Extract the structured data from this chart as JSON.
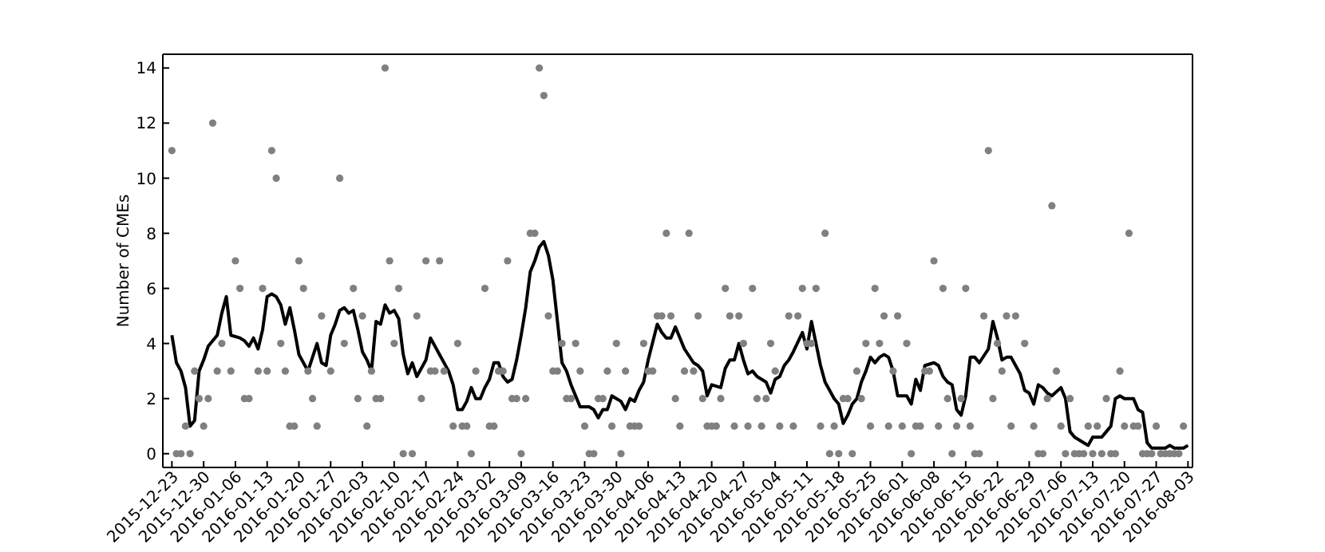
{
  "chart_data": {
    "type": "line",
    "ylabel": "Number of CMEs",
    "xlim": [
      "2015-12-21",
      "2016-08-04"
    ],
    "ylim": [
      -0.5,
      14.5
    ],
    "yticks": [
      0,
      2,
      4,
      6,
      8,
      10,
      12,
      14
    ],
    "xticks": [
      "2015-12-23",
      "2015-12-30",
      "2016-01-06",
      "2016-01-13",
      "2016-01-20",
      "2016-01-27",
      "2016-02-03",
      "2016-02-10",
      "2016-02-17",
      "2016-02-24",
      "2016-03-02",
      "2016-03-09",
      "2016-03-16",
      "2016-03-23",
      "2016-03-30",
      "2016-04-06",
      "2016-04-13",
      "2016-04-20",
      "2016-04-27",
      "2016-05-04",
      "2016-05-11",
      "2016-05-18",
      "2016-05-25",
      "2016-06-01",
      "2016-06-08",
      "2016-06-15",
      "2016-06-22",
      "2016-06-29",
      "2016-07-06",
      "2016-07-13",
      "2016-07-20",
      "2016-07-27",
      "2016-08-03"
    ],
    "series": [
      {
        "type": "scatter",
        "color": "#808080",
        "marker": "circle",
        "x": [
          "2015-12-23",
          "2015-12-24",
          "2015-12-25",
          "2015-12-26",
          "2015-12-27",
          "2015-12-28",
          "2015-12-29",
          "2015-12-30",
          "2015-12-31",
          "2016-01-01",
          "2016-01-02",
          "2016-01-03",
          "2016-01-05",
          "2016-01-06",
          "2016-01-07",
          "2016-01-08",
          "2016-01-09",
          "2016-01-11",
          "2016-01-12",
          "2016-01-13",
          "2016-01-14",
          "2016-01-15",
          "2016-01-16",
          "2016-01-17",
          "2016-01-18",
          "2016-01-19",
          "2016-01-20",
          "2016-01-21",
          "2016-01-22",
          "2016-01-23",
          "2016-01-24",
          "2016-01-25",
          "2016-01-27",
          "2016-01-29",
          "2016-01-30",
          "2016-02-01",
          "2016-02-02",
          "2016-02-03",
          "2016-02-04",
          "2016-02-05",
          "2016-02-06",
          "2016-02-07",
          "2016-02-08",
          "2016-02-09",
          "2016-02-10",
          "2016-02-11",
          "2016-02-12",
          "2016-02-14",
          "2016-02-15",
          "2016-02-16",
          "2016-02-17",
          "2016-02-18",
          "2016-02-19",
          "2016-02-20",
          "2016-02-21",
          "2016-02-23",
          "2016-02-24",
          "2016-02-25",
          "2016-02-26",
          "2016-02-27",
          "2016-02-28",
          "2016-03-01",
          "2016-03-02",
          "2016-03-03",
          "2016-03-04",
          "2016-03-05",
          "2016-03-06",
          "2016-03-07",
          "2016-03-08",
          "2016-03-09",
          "2016-03-10",
          "2016-03-11",
          "2016-03-12",
          "2016-03-13",
          "2016-03-14",
          "2016-03-15",
          "2016-03-16",
          "2016-03-17",
          "2016-03-18",
          "2016-03-19",
          "2016-03-20",
          "2016-03-21",
          "2016-03-22",
          "2016-03-23",
          "2016-03-24",
          "2016-03-25",
          "2016-03-26",
          "2016-03-27",
          "2016-03-28",
          "2016-03-29",
          "2016-03-30",
          "2016-03-31",
          "2016-04-01",
          "2016-04-02",
          "2016-04-03",
          "2016-04-04",
          "2016-04-05",
          "2016-04-06",
          "2016-04-07",
          "2016-04-08",
          "2016-04-09",
          "2016-04-10",
          "2016-04-11",
          "2016-04-12",
          "2016-04-13",
          "2016-04-14",
          "2016-04-15",
          "2016-04-16",
          "2016-04-17",
          "2016-04-18",
          "2016-04-19",
          "2016-04-20",
          "2016-04-21",
          "2016-04-22",
          "2016-04-23",
          "2016-04-24",
          "2016-04-25",
          "2016-04-26",
          "2016-04-27",
          "2016-04-28",
          "2016-04-29",
          "2016-04-30",
          "2016-05-01",
          "2016-05-02",
          "2016-05-03",
          "2016-05-04",
          "2016-05-05",
          "2016-05-07",
          "2016-05-08",
          "2016-05-09",
          "2016-05-10",
          "2016-05-11",
          "2016-05-12",
          "2016-05-13",
          "2016-05-14",
          "2016-05-15",
          "2016-05-16",
          "2016-05-17",
          "2016-05-18",
          "2016-05-19",
          "2016-05-20",
          "2016-05-21",
          "2016-05-22",
          "2016-05-23",
          "2016-05-24",
          "2016-05-25",
          "2016-05-26",
          "2016-05-27",
          "2016-05-28",
          "2016-05-29",
          "2016-05-30",
          "2016-05-31",
          "2016-06-01",
          "2016-06-02",
          "2016-06-03",
          "2016-06-04",
          "2016-06-05",
          "2016-06-06",
          "2016-06-07",
          "2016-06-08",
          "2016-06-09",
          "2016-06-10",
          "2016-06-11",
          "2016-06-12",
          "2016-06-13",
          "2016-06-14",
          "2016-06-15",
          "2016-06-16",
          "2016-06-17",
          "2016-06-18",
          "2016-06-19",
          "2016-06-20",
          "2016-06-21",
          "2016-06-22",
          "2016-06-23",
          "2016-06-24",
          "2016-06-25",
          "2016-06-26",
          "2016-06-28",
          "2016-06-30",
          "2016-07-01",
          "2016-07-02",
          "2016-07-03",
          "2016-07-04",
          "2016-07-05",
          "2016-07-06",
          "2016-07-07",
          "2016-07-08",
          "2016-07-09",
          "2016-07-10",
          "2016-07-11",
          "2016-07-12",
          "2016-07-13",
          "2016-07-14",
          "2016-07-15",
          "2016-07-16",
          "2016-07-17",
          "2016-07-18",
          "2016-07-19",
          "2016-07-20",
          "2016-07-21",
          "2016-07-22",
          "2016-07-23",
          "2016-07-24",
          "2016-07-25",
          "2016-07-26",
          "2016-07-27",
          "2016-07-28",
          "2016-07-29",
          "2016-07-30",
          "2016-07-31",
          "2016-08-01",
          "2016-08-02"
        ],
        "values": [
          11,
          0,
          0,
          1,
          0,
          3,
          2,
          1,
          2,
          12,
          3,
          4,
          3,
          7,
          6,
          2,
          2,
          3,
          6,
          3,
          11,
          10,
          4,
          3,
          1,
          1,
          7,
          6,
          3,
          2,
          1,
          5,
          3,
          10,
          4,
          6,
          2,
          5,
          1,
          3,
          2,
          2,
          14,
          7,
          4,
          6,
          0,
          0,
          5,
          2,
          7,
          3,
          3,
          7,
          3,
          1,
          4,
          1,
          1,
          0,
          3,
          6,
          1,
          1,
          3,
          3,
          7,
          2,
          2,
          0,
          2,
          8,
          8,
          14,
          13,
          5,
          3,
          3,
          4,
          2,
          2,
          4,
          3,
          1,
          0,
          0,
          2,
          2,
          3,
          1,
          4,
          0,
          3,
          1,
          1,
          1,
          4,
          3,
          3,
          5,
          5,
          8,
          5,
          2,
          1,
          3,
          8,
          3,
          5,
          2,
          1,
          1,
          1,
          2,
          6,
          5,
          1,
          5,
          4,
          1,
          6,
          2,
          1,
          2,
          4,
          3,
          1,
          5,
          1,
          5,
          6,
          4,
          4,
          6,
          1,
          8,
          0,
          1,
          0,
          2,
          2,
          0,
          3,
          2,
          4,
          1,
          6,
          4,
          5,
          1,
          3,
          5,
          1,
          4,
          0,
          1,
          1,
          3,
          3,
          7,
          1,
          6,
          2,
          0,
          1,
          2,
          6,
          1,
          0,
          0,
          5,
          11,
          2,
          4,
          3,
          5,
          1,
          5,
          4,
          1,
          0,
          0,
          2,
          9,
          3,
          1,
          0,
          2,
          0,
          0,
          0,
          1,
          0,
          1,
          0,
          2,
          0,
          0,
          3,
          1,
          8,
          1,
          1,
          0,
          0,
          0,
          1,
          0,
          0,
          0,
          0,
          0,
          1
        ]
      },
      {
        "color": "#000000",
        "marker": "none",
        "line_style": "solid",
        "x": [
          "2015-12-23",
          "2015-12-24",
          "2015-12-25",
          "2015-12-26",
          "2015-12-27",
          "2015-12-28",
          "2015-12-29",
          "2015-12-30",
          "2015-12-31",
          "2016-01-02",
          "2016-01-03",
          "2016-01-04",
          "2016-01-05",
          "2016-01-07",
          "2016-01-08",
          "2016-01-09",
          "2016-01-10",
          "2016-01-11",
          "2016-01-12",
          "2016-01-13",
          "2016-01-14",
          "2016-01-15",
          "2016-01-16",
          "2016-01-17",
          "2016-01-18",
          "2016-01-19",
          "2016-01-20",
          "2016-01-21",
          "2016-01-22",
          "2016-01-23",
          "2016-01-24",
          "2016-01-25",
          "2016-01-26",
          "2016-01-27",
          "2016-01-28",
          "2016-01-29",
          "2016-01-30",
          "2016-01-31",
          "2016-02-01",
          "2016-02-02",
          "2016-02-03",
          "2016-02-04",
          "2016-02-05",
          "2016-02-06",
          "2016-02-07",
          "2016-02-08",
          "2016-02-09",
          "2016-02-10",
          "2016-02-11",
          "2016-02-12",
          "2016-02-13",
          "2016-02-14",
          "2016-02-15",
          "2016-02-17",
          "2016-02-18",
          "2016-02-19",
          "2016-02-20",
          "2016-02-22",
          "2016-02-23",
          "2016-02-24",
          "2016-02-25",
          "2016-02-26",
          "2016-02-27",
          "2016-02-28",
          "2016-02-29",
          "2016-03-01",
          "2016-03-02",
          "2016-03-03",
          "2016-03-04",
          "2016-03-05",
          "2016-03-06",
          "2016-03-07",
          "2016-03-08",
          "2016-03-09",
          "2016-03-10",
          "2016-03-11",
          "2016-03-12",
          "2016-03-13",
          "2016-03-14",
          "2016-03-15",
          "2016-03-16",
          "2016-03-17",
          "2016-03-18",
          "2016-03-19",
          "2016-03-20",
          "2016-03-22",
          "2016-03-24",
          "2016-03-25",
          "2016-03-26",
          "2016-03-27",
          "2016-03-28",
          "2016-03-29",
          "2016-03-30",
          "2016-03-31",
          "2016-04-01",
          "2016-04-02",
          "2016-04-03",
          "2016-04-04",
          "2016-04-05",
          "2016-04-06",
          "2016-04-08",
          "2016-04-09",
          "2016-04-10",
          "2016-04-11",
          "2016-04-12",
          "2016-04-13",
          "2016-04-14",
          "2016-04-16",
          "2016-04-17",
          "2016-04-18",
          "2016-04-19",
          "2016-04-20",
          "2016-04-22",
          "2016-04-23",
          "2016-04-24",
          "2016-04-25",
          "2016-04-26",
          "2016-04-27",
          "2016-04-28",
          "2016-04-29",
          "2016-04-30",
          "2016-05-01",
          "2016-05-02",
          "2016-05-03",
          "2016-05-04",
          "2016-05-05",
          "2016-05-06",
          "2016-05-07",
          "2016-05-08",
          "2016-05-10",
          "2016-05-11",
          "2016-05-12",
          "2016-05-13",
          "2016-05-14",
          "2016-05-15",
          "2016-05-17",
          "2016-05-18",
          "2016-05-19",
          "2016-05-20",
          "2016-05-21",
          "2016-05-22",
          "2016-05-23",
          "2016-05-24",
          "2016-05-25",
          "2016-05-26",
          "2016-05-27",
          "2016-05-28",
          "2016-05-29",
          "2016-05-30",
          "2016-05-31",
          "2016-06-02",
          "2016-06-03",
          "2016-06-04",
          "2016-06-05",
          "2016-06-06",
          "2016-06-08",
          "2016-06-09",
          "2016-06-10",
          "2016-06-11",
          "2016-06-12",
          "2016-06-13",
          "2016-06-14",
          "2016-06-15",
          "2016-06-16",
          "2016-06-17",
          "2016-06-18",
          "2016-06-20",
          "2016-06-21",
          "2016-06-22",
          "2016-06-23",
          "2016-06-24",
          "2016-06-25",
          "2016-06-26",
          "2016-06-27",
          "2016-06-28",
          "2016-06-29",
          "2016-06-30",
          "2016-07-01",
          "2016-07-02",
          "2016-07-03",
          "2016-07-04",
          "2016-07-06",
          "2016-07-07",
          "2016-07-08",
          "2016-07-09",
          "2016-07-11",
          "2016-07-12",
          "2016-07-13",
          "2016-07-15",
          "2016-07-16",
          "2016-07-17",
          "2016-07-18",
          "2016-07-19",
          "2016-07-20",
          "2016-07-22",
          "2016-07-23",
          "2016-07-24",
          "2016-07-25",
          "2016-07-26",
          "2016-07-27",
          "2016-07-29",
          "2016-07-30",
          "2016-07-31",
          "2016-08-02",
          "2016-08-03"
        ],
        "values": [
          4.3,
          3.3,
          3.0,
          2.4,
          1.0,
          1.2,
          3.0,
          3.4,
          3.9,
          4.3,
          5.1,
          5.7,
          4.3,
          4.2,
          4.1,
          3.9,
          4.2,
          3.8,
          4.5,
          5.7,
          5.8,
          5.7,
          5.4,
          4.7,
          5.3,
          4.5,
          3.6,
          3.3,
          3.0,
          3.5,
          4.0,
          3.3,
          3.2,
          4.3,
          4.7,
          5.2,
          5.3,
          5.1,
          5.2,
          4.5,
          3.7,
          3.4,
          3.0,
          4.8,
          4.7,
          5.4,
          5.1,
          5.2,
          4.9,
          3.6,
          2.9,
          3.3,
          2.8,
          3.4,
          4.2,
          3.9,
          3.6,
          3.0,
          2.5,
          1.6,
          1.6,
          1.9,
          2.4,
          2.0,
          2.0,
          2.4,
          2.7,
          3.3,
          3.3,
          2.8,
          2.6,
          2.7,
          3.4,
          4.3,
          5.3,
          6.6,
          7.0,
          7.5,
          7.7,
          7.2,
          6.3,
          4.8,
          3.3,
          3.0,
          2.5,
          1.7,
          1.7,
          1.6,
          1.3,
          1.6,
          1.6,
          2.1,
          2.0,
          1.9,
          1.6,
          2.0,
          1.9,
          2.3,
          2.6,
          3.4,
          4.7,
          4.4,
          4.2,
          4.2,
          4.6,
          4.2,
          3.8,
          3.3,
          3.2,
          3.0,
          2.1,
          2.5,
          2.4,
          3.1,
          3.4,
          3.4,
          4.0,
          3.4,
          2.9,
          3.0,
          2.8,
          2.7,
          2.6,
          2.2,
          2.7,
          2.8,
          3.2,
          3.4,
          3.7,
          4.4,
          3.8,
          4.8,
          4.0,
          3.2,
          2.6,
          2.0,
          1.8,
          1.1,
          1.4,
          1.8,
          2.0,
          2.6,
          3.0,
          3.5,
          3.3,
          3.5,
          3.6,
          3.5,
          3.0,
          2.1,
          2.1,
          1.8,
          2.7,
          2.3,
          3.2,
          3.3,
          3.2,
          2.8,
          2.6,
          2.5,
          1.6,
          1.4,
          2.1,
          3.5,
          3.5,
          3.3,
          3.8,
          4.8,
          4.2,
          3.4,
          3.5,
          3.5,
          3.2,
          2.9,
          2.3,
          2.2,
          1.8,
          2.5,
          2.4,
          2.2,
          2.1,
          2.4,
          2.0,
          0.8,
          0.6,
          0.4,
          0.3,
          0.6,
          0.6,
          0.8,
          1.0,
          2.0,
          2.1,
          2.0,
          2.0,
          1.6,
          1.5,
          0.4,
          0.2,
          0.2,
          0.2,
          0.3,
          0.2,
          0.2,
          0.3
        ]
      }
    ]
  }
}
